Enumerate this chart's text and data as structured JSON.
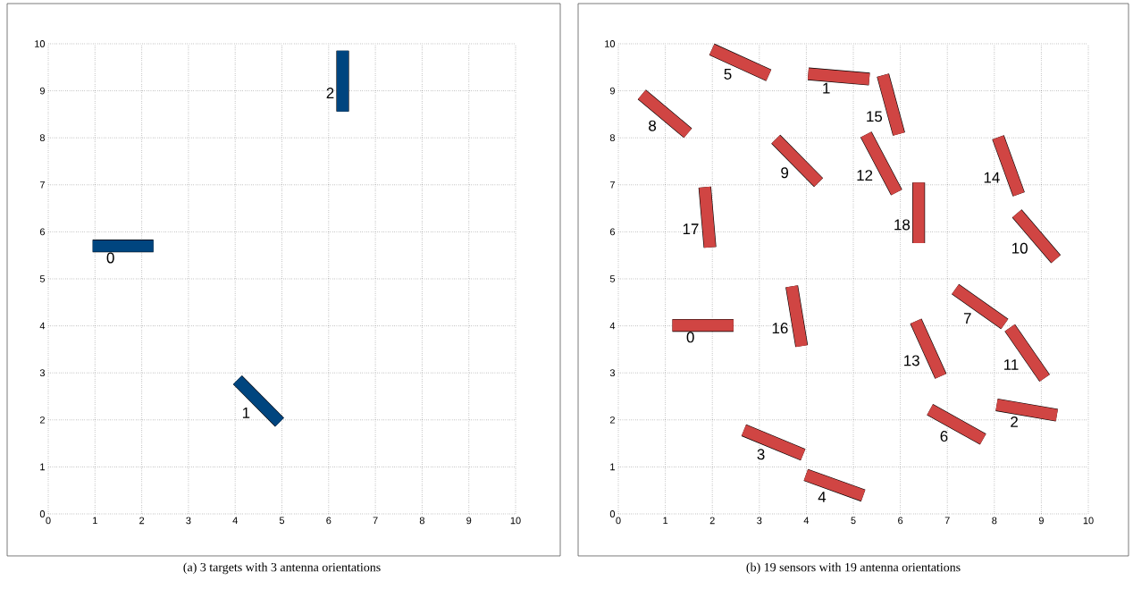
{
  "chart_data": [
    {
      "type": "line",
      "title": "(a) 3 targets with 3 antenna orientations",
      "xlim": [
        0,
        10
      ],
      "ylim": [
        0,
        10
      ],
      "xticks": [
        0,
        1,
        2,
        3,
        4,
        5,
        6,
        7,
        8,
        9,
        10
      ],
      "yticks": [
        0,
        1,
        2,
        3,
        4,
        5,
        6,
        7,
        8,
        9,
        10
      ],
      "grid": true,
      "marker": "none",
      "line_style": "solid",
      "series": [
        {
          "name": "0",
          "x": [
            0.95,
            2.25
          ],
          "values": [
            5.7,
            5.7
          ],
          "color": "#00457f"
        },
        {
          "name": "1",
          "x": [
            4.05,
            4.95
          ],
          "values": [
            2.85,
            1.95
          ],
          "color": "#00457f"
        },
        {
          "name": "2",
          "x": [
            6.3,
            6.3
          ],
          "values": [
            9.85,
            8.56
          ],
          "color": "#00457f"
        }
      ]
    },
    {
      "type": "line",
      "title": "(b) 19 sensors with 19 antenna orientations",
      "xlim": [
        0,
        10
      ],
      "ylim": [
        0,
        10
      ],
      "xticks": [
        0,
        1,
        2,
        3,
        4,
        5,
        6,
        7,
        8,
        9,
        10
      ],
      "yticks": [
        0,
        1,
        2,
        3,
        4,
        5,
        6,
        7,
        8,
        9,
        10
      ],
      "grid": true,
      "marker": "none",
      "line_style": "solid",
      "series": [
        {
          "name": "0",
          "x": [
            1.15,
            2.45
          ],
          "values": [
            4.01,
            4.01
          ],
          "color": "#d04543"
        },
        {
          "name": "1",
          "x": [
            4.04,
            5.34
          ],
          "values": [
            9.36,
            9.25
          ],
          "color": "#d04543"
        },
        {
          "name": "2",
          "x": [
            8.05,
            9.33
          ],
          "values": [
            2.32,
            2.1
          ],
          "color": "#d04543"
        },
        {
          "name": "3",
          "x": [
            2.67,
            3.93
          ],
          "values": [
            1.78,
            1.26
          ],
          "color": "#d04543"
        },
        {
          "name": "4",
          "x": [
            3.99,
            5.21
          ],
          "values": [
            0.83,
            0.39
          ],
          "color": "#d04543"
        },
        {
          "name": "5",
          "x": [
            1.99,
            3.2
          ],
          "values": [
            9.88,
            9.33
          ],
          "color": "#d04543"
        },
        {
          "name": "6",
          "x": [
            6.63,
            7.76
          ],
          "values": [
            2.22,
            1.59
          ],
          "color": "#d04543"
        },
        {
          "name": "7",
          "x": [
            7.17,
            8.22
          ],
          "values": [
            4.78,
            4.04
          ],
          "color": "#d04543"
        },
        {
          "name": "8",
          "x": [
            0.5,
            1.48
          ],
          "values": [
            8.92,
            8.1
          ],
          "color": "#d04543"
        },
        {
          "name": "9",
          "x": [
            3.35,
            4.26
          ],
          "values": [
            7.97,
            7.05
          ],
          "color": "#d04543"
        },
        {
          "name": "10",
          "x": [
            8.48,
            9.31
          ],
          "values": [
            6.39,
            5.42
          ],
          "color": "#d04543"
        },
        {
          "name": "11",
          "x": [
            8.33,
            9.07
          ],
          "values": [
            3.96,
            2.89
          ],
          "color": "#d04543"
        },
        {
          "name": "12",
          "x": [
            5.27,
            5.92
          ],
          "values": [
            8.07,
            6.84
          ],
          "color": "#d04543"
        },
        {
          "name": "13",
          "x": [
            6.33,
            6.86
          ],
          "values": [
            4.1,
            2.93
          ],
          "color": "#d04543"
        },
        {
          "name": "14",
          "x": [
            8.08,
            8.52
          ],
          "values": [
            8.01,
            6.8
          ],
          "color": "#d04543"
        },
        {
          "name": "15",
          "x": [
            5.63,
            5.97
          ],
          "values": [
            9.33,
            8.08
          ],
          "color": "#d04543"
        },
        {
          "name": "16",
          "x": [
            3.69,
            3.9
          ],
          "values": [
            4.84,
            3.57
          ],
          "color": "#d04543"
        },
        {
          "name": "17",
          "x": [
            1.84,
            1.95
          ],
          "values": [
            6.95,
            5.67
          ],
          "color": "#d04543"
        },
        {
          "name": "18",
          "x": [
            6.39,
            6.39
          ],
          "values": [
            7.05,
            5.76
          ],
          "color": "#d04543"
        }
      ]
    }
  ]
}
